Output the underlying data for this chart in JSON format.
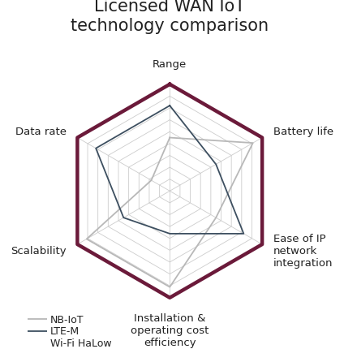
{
  "title": "Licensed WAN IoT\ntechnology comparison",
  "categories": [
    "Range",
    "Battery life",
    "Ease of IP\nnetwork\nintegration",
    "Installation &\noperating cost\nefficiency",
    "Scalability",
    "Data rate"
  ],
  "series": [
    {
      "name": "NB-IoT",
      "values": [
        5,
        9,
        5,
        9,
        9,
        2
      ],
      "color": "#b8b8b8",
      "linewidth": 1.3,
      "zorder": 2
    },
    {
      "name": "LTE-M",
      "values": [
        8,
        5,
        8,
        4,
        5,
        8
      ],
      "color": "#3d4f60",
      "linewidth": 1.3,
      "zorder": 3
    },
    {
      "name": "Wi-Fi HaLow",
      "values": [
        10,
        10,
        10,
        10,
        10,
        10
      ],
      "color": "#6b1a3a",
      "linewidth": 3.2,
      "zorder": 4
    }
  ],
  "n_rings": 9,
  "max_val": 10,
  "grid_color": "#cccccc",
  "grid_linewidth": 0.6,
  "bg_color": "#ffffff",
  "title_fontsize": 15,
  "label_fontsize": 9.5,
  "legend_fontsize": 9,
  "title_color": "#222222",
  "label_color": "#222222"
}
